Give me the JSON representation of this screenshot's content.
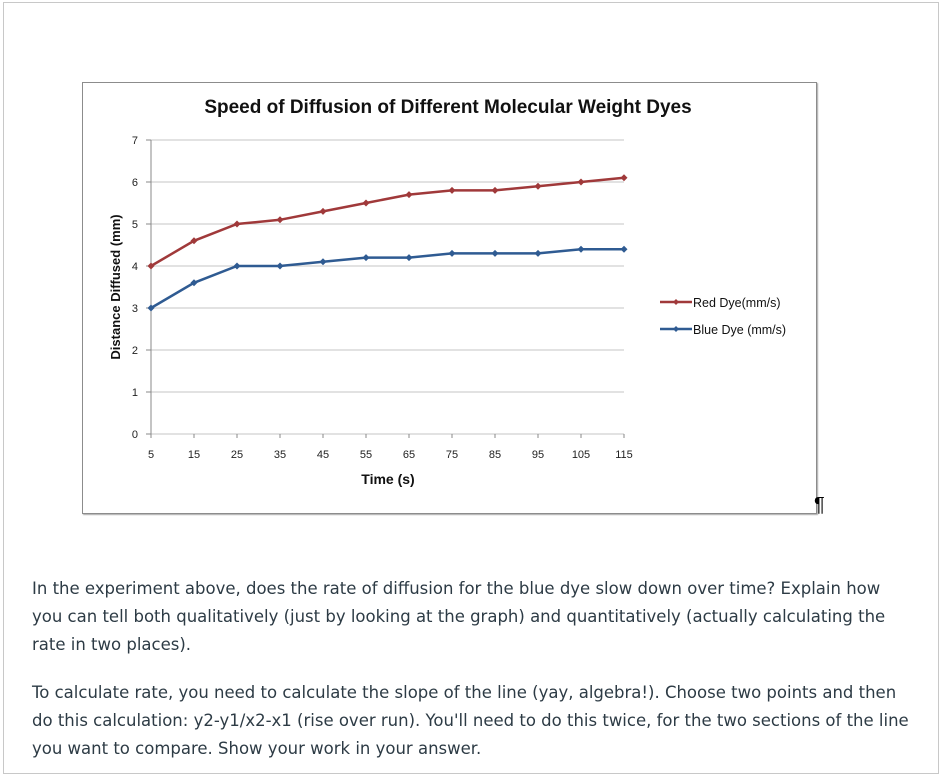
{
  "chart_data": {
    "type": "line",
    "title": "Speed of Diffusion of Different Molecular Weight Dyes",
    "xlabel": "Time (s)",
    "ylabel": "Distance Diffused (mm)",
    "x": [
      5,
      15,
      25,
      35,
      45,
      55,
      65,
      75,
      85,
      95,
      105,
      115
    ],
    "xticks": [
      "5",
      "15",
      "25",
      "35",
      "45",
      "55",
      "65",
      "75",
      "85",
      "95",
      "105",
      "115"
    ],
    "yticks": [
      "0",
      "1",
      "2",
      "3",
      "4",
      "5",
      "6",
      "7"
    ],
    "ylim": [
      0,
      7
    ],
    "xlim": [
      5,
      115
    ],
    "grid": "horizontal",
    "legend": "right",
    "series": [
      {
        "name": "Red Dye(mm/s)",
        "color": "#a0393a",
        "values": [
          4,
          4.6,
          5,
          5.1,
          5.3,
          5.5,
          5.7,
          5.8,
          5.8,
          5.9,
          6,
          6.1
        ]
      },
      {
        "name": "Blue Dye (mm/s)",
        "color": "#2f5b92",
        "values": [
          3,
          3.6,
          4,
          4,
          4.1,
          4.2,
          4.2,
          4.3,
          4.3,
          4.3,
          4.4,
          4.4
        ]
      }
    ]
  },
  "pilcrow": "¶",
  "question": {
    "p1": "In the experiment above, does the rate of diffusion for the blue dye slow down over time? Explain how you can tell both qualitatively (just by looking at the graph) and quantitatively (actually calculating the rate in two places).",
    "p2": "To calculate rate, you need to calculate the slope of the line (yay, algebra!). Choose two points and then do this calculation: y2-y1/x2-x1 (rise over run). You'll need to do this twice, for the two sections of the line you want to compare. Show your work in your answer."
  }
}
